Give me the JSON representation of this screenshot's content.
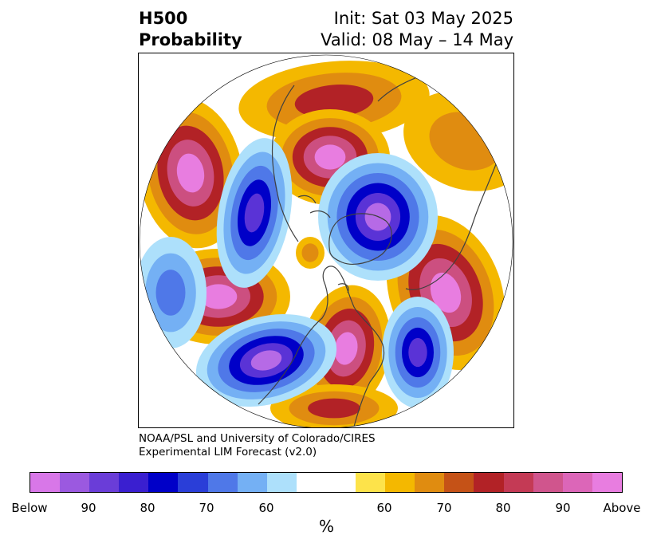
{
  "title": {
    "left_line1": "H500",
    "left_line2": "Probability",
    "right_line1": "Init: Sat 03 May 2025",
    "right_line2": "Valid: 08 May – 14 May"
  },
  "credit": {
    "line1": "NOAA/PSL and University of Colorado/CIRES",
    "line2": "Experimental LIM Forecast (v2.0)"
  },
  "colorbar": {
    "segments": [
      "#d877e8",
      "#9b59e0",
      "#6a3dd8",
      "#3a1fd0",
      "#0000c8",
      "#2a3ed8",
      "#4f78e8",
      "#74b0f4",
      "#ade0fb",
      "#ffffff",
      "#ffffff",
      "#fde34a",
      "#f4b800",
      "#e08c10",
      "#c55217",
      "#b22226",
      "#c43a55",
      "#d0558d",
      "#dc66b8",
      "#e87de0"
    ],
    "ticks": [
      "Below",
      "90",
      "80",
      "70",
      "60",
      "60",
      "70",
      "80",
      "90",
      "Above"
    ],
    "unit": "%"
  },
  "map": {
    "projection": "north-polar-stereographic",
    "colors": {
      "above_strong": "#e87de0",
      "above_high": "#cc4f80",
      "above_mid": "#b22226",
      "above_low": "#e08c10",
      "above_weak": "#f4b800",
      "above_faint": "#fde34a",
      "below_strong": "#b66ae6",
      "below_high": "#5a33d6",
      "below_mid": "#0000c8",
      "below_low": "#4f78e8",
      "below_weak": "#74b0f4",
      "below_faint": "#ade0fb",
      "coast": "#404040"
    }
  }
}
